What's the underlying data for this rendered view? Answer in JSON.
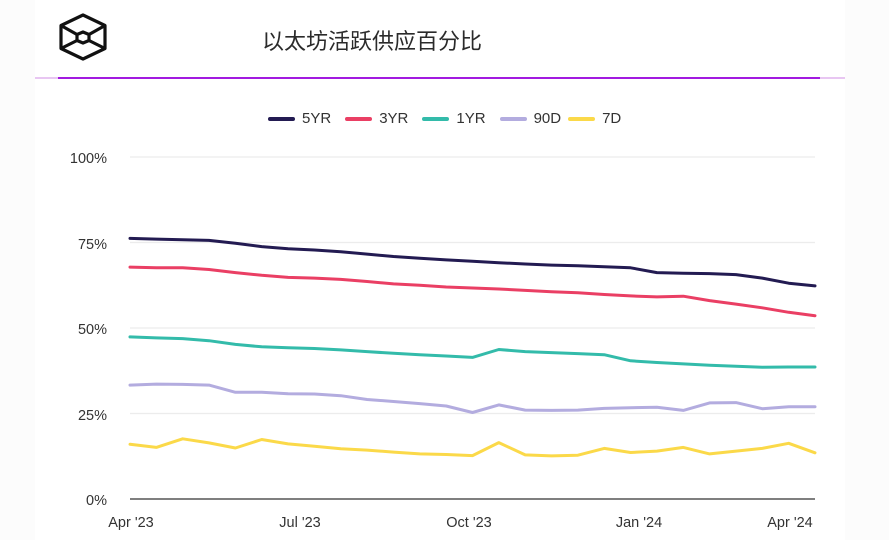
{
  "header": {
    "title": "以太坊活跃供应百分比",
    "logo_icon": "cube-logo-icon",
    "accent_color": "#a21ae0"
  },
  "legend": {
    "items": [
      {
        "label": "5YR",
        "color": "#231b52"
      },
      {
        "label": "3YR",
        "color": "#ea3f64"
      },
      {
        "label": "1YR",
        "color": "#33bbaa"
      },
      {
        "label": "90D",
        "color": "#b3acdf"
      },
      {
        "label": "7D",
        "color": "#fbd949"
      }
    ]
  },
  "axes": {
    "y_ticks": [
      "100%",
      "75%",
      "50%",
      "25%",
      "0%"
    ],
    "x_ticks": [
      "Apr '23",
      "Jul '23",
      "Oct '23",
      "Jan '24",
      "Apr '24"
    ]
  },
  "chart_data": {
    "type": "line",
    "title": "以太坊活跃供应百分比",
    "xlabel": "",
    "ylabel": "",
    "ylim": [
      0,
      100
    ],
    "x_ticks": [
      "Apr '23",
      "Jul '23",
      "Oct '23",
      "Jan '24",
      "Apr '24"
    ],
    "y_ticks": [
      0,
      25,
      50,
      75,
      100
    ],
    "grid": true,
    "legend_position": "top",
    "x": [
      "2023-04-01",
      "2023-04-15",
      "2023-04-29",
      "2023-05-13",
      "2023-05-27",
      "2023-06-10",
      "2023-06-24",
      "2023-07-08",
      "2023-07-22",
      "2023-08-05",
      "2023-08-19",
      "2023-09-02",
      "2023-09-16",
      "2023-09-30",
      "2023-10-14",
      "2023-10-28",
      "2023-11-11",
      "2023-11-25",
      "2023-12-09",
      "2023-12-23",
      "2024-01-06",
      "2024-01-20",
      "2024-02-03",
      "2024-02-17",
      "2024-03-02",
      "2024-03-16",
      "2024-03-30"
    ],
    "series": [
      {
        "name": "5YR",
        "color": "#231b52",
        "values": [
          76.2,
          76.0,
          75.8,
          75.6,
          74.8,
          73.8,
          73.2,
          72.8,
          72.3,
          71.6,
          70.9,
          70.4,
          69.9,
          69.5,
          69.1,
          68.7,
          68.4,
          68.2,
          67.9,
          67.6,
          66.2,
          66.0,
          65.9,
          65.6,
          64.6,
          63.1,
          62.3
        ]
      },
      {
        "name": "3YR",
        "color": "#ea3f64",
        "values": [
          67.8,
          67.6,
          67.6,
          67.1,
          66.2,
          65.4,
          64.8,
          64.6,
          64.2,
          63.6,
          62.9,
          62.5,
          62.0,
          61.7,
          61.4,
          61.0,
          60.6,
          60.3,
          59.8,
          59.4,
          59.1,
          59.3,
          58.0,
          57.0,
          55.9,
          54.6,
          53.6
        ]
      },
      {
        "name": "1YR",
        "color": "#33bbaa",
        "values": [
          47.4,
          47.1,
          46.9,
          46.3,
          45.2,
          44.5,
          44.2,
          44.0,
          43.6,
          43.1,
          42.6,
          42.2,
          41.8,
          41.4,
          43.7,
          43.1,
          42.8,
          42.5,
          42.2,
          40.4,
          39.9,
          39.5,
          39.1,
          38.8,
          38.5,
          38.6,
          38.6
        ]
      },
      {
        "name": "90D",
        "color": "#b3acdf",
        "values": [
          33.3,
          33.6,
          33.5,
          33.3,
          31.2,
          31.2,
          30.8,
          30.7,
          30.2,
          29.1,
          28.5,
          27.9,
          27.2,
          25.3,
          27.5,
          26.0,
          25.9,
          26.0,
          26.5,
          26.7,
          26.8,
          25.9,
          28.1,
          28.2,
          26.4,
          27.0,
          27.0
        ]
      },
      {
        "name": "7D",
        "color": "#fbd949",
        "values": [
          16.0,
          15.1,
          17.6,
          16.4,
          14.9,
          17.4,
          16.1,
          15.4,
          14.7,
          14.3,
          13.7,
          13.2,
          13.0,
          12.7,
          16.5,
          12.9,
          12.6,
          12.8,
          14.8,
          13.6,
          14.0,
          15.1,
          13.2,
          14.0,
          14.8,
          16.3,
          13.5
        ]
      }
    ]
  }
}
